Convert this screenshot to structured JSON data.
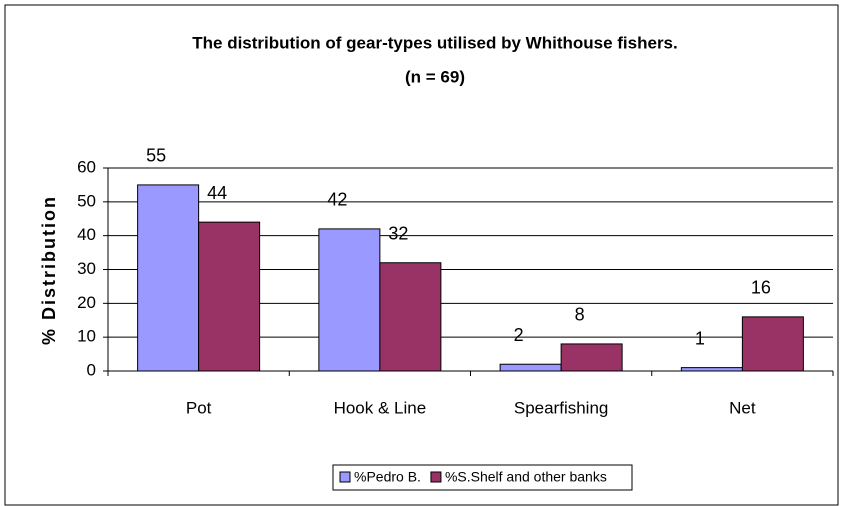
{
  "chart_data": {
    "type": "bar",
    "title": "The distribution of gear-types utilised by Whithouse fishers.",
    "subtitle": "(n = 69)",
    "y_label": "% Distribution",
    "categories": [
      "Pot",
      "Hook & Line",
      "Spearfishing",
      "Net"
    ],
    "series": [
      {
        "name": "%Pedro B.",
        "color": "#9999ff",
        "values": [
          55,
          42,
          2,
          1
        ]
      },
      {
        "name": "%S.Shelf and other banks",
        "color": "#993366",
        "values": [
          44,
          32,
          8,
          16
        ]
      }
    ],
    "ylim": [
      0,
      60
    ],
    "yticks": [
      0,
      10,
      20,
      30,
      40,
      50,
      60
    ],
    "grid": true,
    "legend": "bottom"
  }
}
